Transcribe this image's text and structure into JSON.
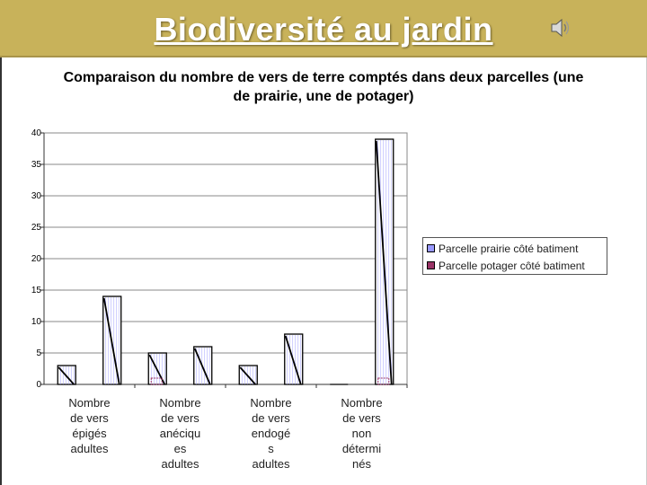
{
  "header": {
    "title": "Biodiversité au jardin",
    "icon": "speaker-icon",
    "background": "#c8b25a"
  },
  "chart_data": {
    "type": "bar",
    "title": "Comparaison du nombre de vers de terre comptés dans deux parcelles  (une de prairie, une de potager)",
    "categories": [
      "Nombre de vers épigés adultes",
      "",
      "Nombre de vers anéciques adultes",
      "",
      "Nombre de vers endogés adultes",
      "",
      "Nombre de vers non déterminés",
      ""
    ],
    "category_labels_lines": [
      [
        "Nombre",
        "de vers",
        "épigés",
        "adultes"
      ],
      [],
      [
        "Nombre",
        "de vers",
        "anéciqu",
        "es",
        "adultes"
      ],
      [],
      [
        "Nombre",
        "de vers",
        "endogé",
        "s",
        "adultes"
      ],
      [],
      [
        "Nombre",
        "de vers",
        "non",
        "détermi",
        "nés"
      ],
      []
    ],
    "series": [
      {
        "name": "Parcelle prairie côté batiment",
        "color": "#9999ff",
        "values": [
          3,
          14,
          5,
          6,
          3,
          8,
          0,
          39
        ]
      },
      {
        "name": "Parcelle potager côté batiment",
        "color": "#993366",
        "values": [
          0,
          0,
          1,
          0,
          0,
          0,
          0,
          1
        ]
      }
    ],
    "ylim": [
      0,
      40
    ],
    "yticks": [
      0,
      5,
      10,
      15,
      20,
      25,
      30,
      35,
      40
    ],
    "grid": true,
    "legend_position": "right",
    "legend_ghost_text": [
      "Parcelle prairie côté batiment",
      "Parcelle potager côté batiment"
    ]
  }
}
